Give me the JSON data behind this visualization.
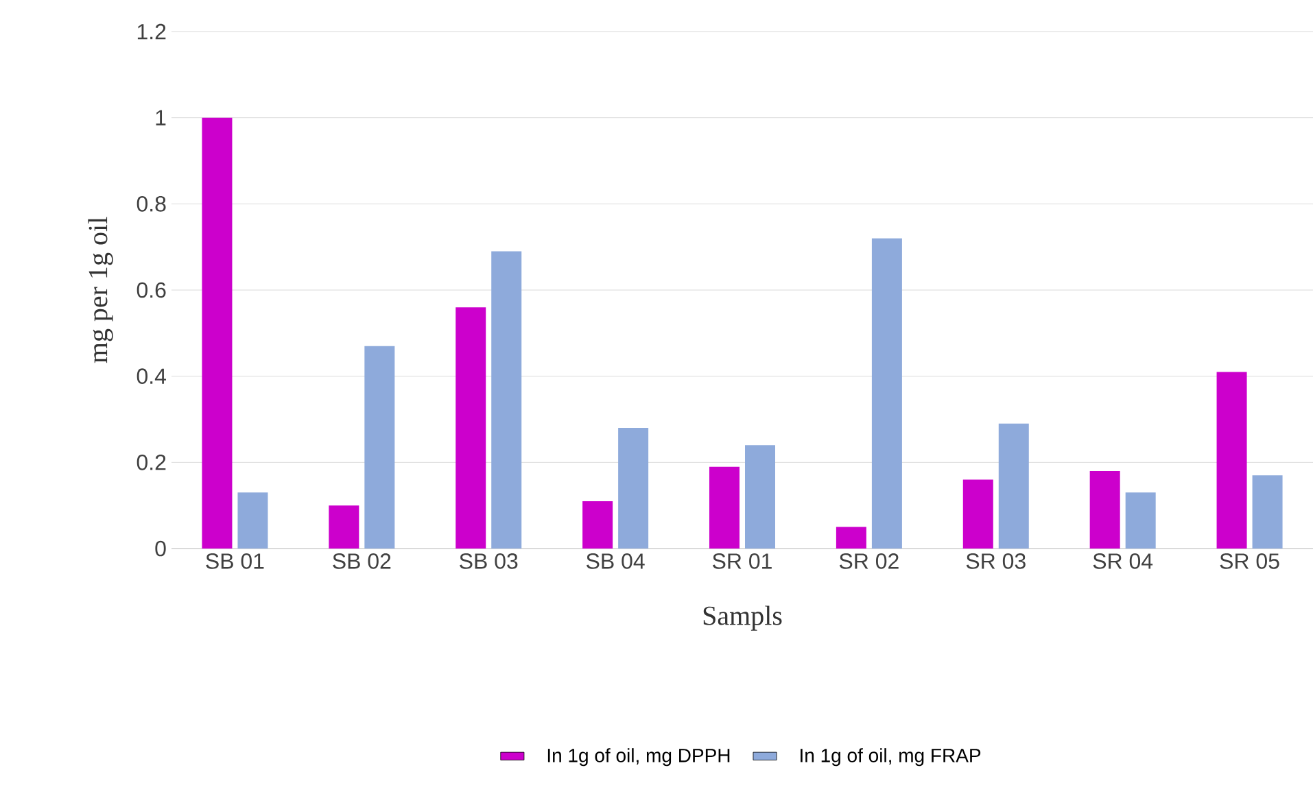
{
  "chart_data": {
    "type": "bar",
    "xlabel": "Sampls",
    "ylabel": "mg per 1g oil",
    "categories": [
      "SB 01",
      "SB 02",
      "SB 03",
      "SB 04",
      "SR 01",
      "SR 02",
      "SR 03",
      "SR 04",
      "SR 05"
    ],
    "series": [
      {
        "name": "In 1g of oil, mg DPPH",
        "color": "#cc00cc",
        "values": [
          1.0,
          0.1,
          0.56,
          0.11,
          0.19,
          0.05,
          0.16,
          0.18,
          0.41
        ]
      },
      {
        "name": "In 1g of oil, mg FRAP",
        "color": "#8eaadb",
        "values": [
          0.13,
          0.47,
          0.69,
          0.28,
          0.24,
          0.72,
          0.29,
          0.13,
          0.17
        ]
      }
    ],
    "ylim": [
      0,
      1.2
    ],
    "yticks": [
      0,
      0.2,
      0.4,
      0.6,
      0.8,
      1,
      1.2
    ],
    "grid": "y",
    "legend": "bottom"
  }
}
